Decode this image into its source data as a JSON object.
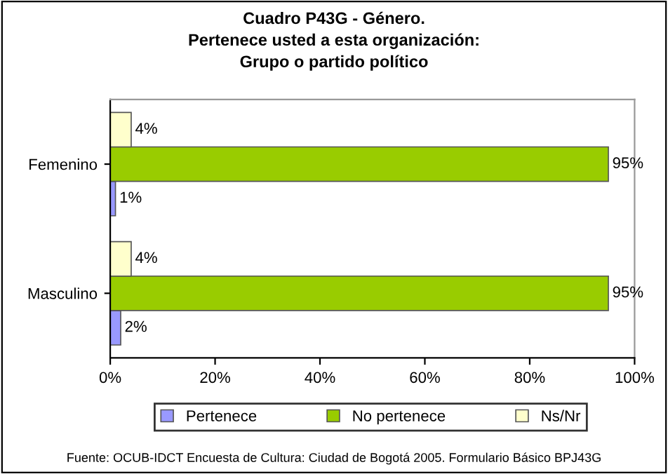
{
  "chart_data": {
    "type": "bar",
    "orientation": "horizontal",
    "title": "Cuadro P43G - Género.\nPertenece usted a esta organización:\nGrupo o partido político",
    "categories": [
      "Femenino",
      "Masculino"
    ],
    "series": [
      {
        "name": "Pertenece",
        "color": "#9999ff",
        "values": [
          1,
          2
        ],
        "value_labels": [
          "1%",
          "2%"
        ]
      },
      {
        "name": "No pertenece",
        "color": "#99cc00",
        "values": [
          95,
          95
        ],
        "value_labels": [
          "95%",
          "95%"
        ]
      },
      {
        "name": "Ns/Nr",
        "color": "#ffffcc",
        "values": [
          4,
          4
        ],
        "value_labels": [
          "4%",
          "4%"
        ]
      }
    ],
    "xlim": [
      0,
      100
    ],
    "xticks": [
      {
        "value": 0,
        "label": "0%"
      },
      {
        "value": 20,
        "label": "20%"
      },
      {
        "value": 40,
        "label": "40%"
      },
      {
        "value": 60,
        "label": "60%"
      },
      {
        "value": 80,
        "label": "80%"
      },
      {
        "value": 100,
        "label": "100%"
      }
    ],
    "grid": false,
    "legend": "bottom",
    "annotations": [
      "Fuente: OCUB-IDCT Encuesta de Cultura: Ciudad de Bogotá 2005. Formulario Básico BPJ43G"
    ]
  }
}
